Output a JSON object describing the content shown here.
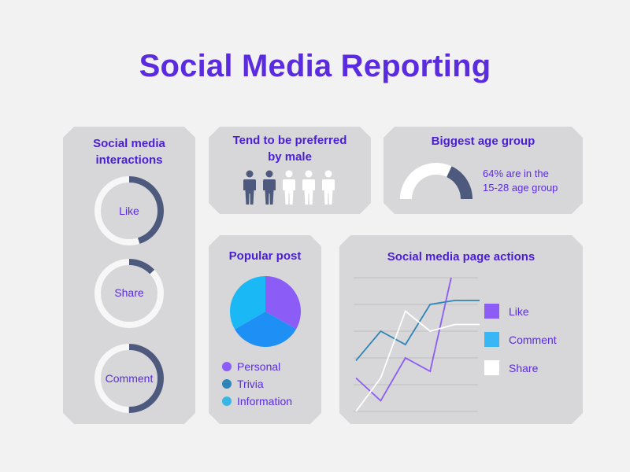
{
  "title": "Social Media Reporting",
  "interactions": {
    "title": "Social media interactions",
    "rings": [
      {
        "label": "Like",
        "fraction": 0.45
      },
      {
        "label": "Share",
        "fraction": 0.13
      },
      {
        "label": "Comment",
        "fraction": 0.5
      }
    ],
    "colors": {
      "track": "#f7f7f7",
      "progress": "#4e5a7d"
    }
  },
  "male": {
    "title": "Tend to be preferred by male",
    "people_total": 5,
    "people_highlighted": 2,
    "colors": {
      "highlight": "#4e5a7d",
      "other": "#ffffff"
    }
  },
  "age": {
    "title": "Biggest age group",
    "text_line1": "64% are in the",
    "text_line2": "15-28 age group",
    "fraction": 0.36,
    "colors": {
      "track": "#ffffff",
      "highlight": "#4e5a7d"
    }
  },
  "popular": {
    "title": "Popular post",
    "chart_data": {
      "type": "pie",
      "slices": [
        {
          "label": "Personal",
          "value": 33.3,
          "color": "#8b5cf6"
        },
        {
          "label": "Trivia",
          "value": 33.3,
          "color": "#1e90f5"
        },
        {
          "label": "Information",
          "value": 33.4,
          "color": "#1ab8f5"
        }
      ]
    },
    "legend": [
      {
        "label": "Personal",
        "color": "#8b5cf6"
      },
      {
        "label": "Trivia",
        "color": "#2e86b8"
      },
      {
        "label": "Information",
        "color": "#38b6e4"
      }
    ]
  },
  "actions": {
    "title": "Social media page actions",
    "chart_data": {
      "type": "line",
      "x": [
        0,
        1,
        2,
        3,
        4,
        5
      ],
      "ylim": [
        0,
        100
      ],
      "grid": true,
      "legend_placement": "right",
      "series": [
        {
          "name": "Like",
          "color": "#8b5cf6",
          "values": [
            25,
            8,
            40,
            30,
            100,
            100
          ]
        },
        {
          "name": "Comment",
          "color": "#2e86b8",
          "values": [
            38,
            60,
            50,
            80,
            83,
            83
          ]
        },
        {
          "name": "Share",
          "color": "#ffffff",
          "values": [
            0,
            25,
            75,
            60,
            65,
            65
          ]
        }
      ]
    }
  }
}
